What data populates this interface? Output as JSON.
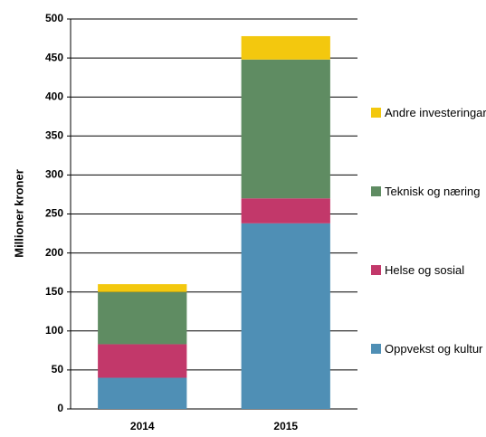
{
  "chart_data": {
    "type": "stacked_bar",
    "y_label": "Millioner kroner",
    "categories": [
      "2014",
      "2015"
    ],
    "series": [
      {
        "name": "Oppvekst og kultur",
        "color": "#4f8fb5",
        "values": [
          40,
          238
        ]
      },
      {
        "name": "Helse og sosial",
        "color": "#c2386a",
        "values": [
          43,
          32
        ]
      },
      {
        "name": "Teknisk og næring",
        "color": "#5f8c62",
        "values": [
          67,
          178
        ]
      },
      {
        "name": "Andre investeringar",
        "color": "#f3c80e",
        "values": [
          10,
          30
        ]
      }
    ],
    "ylim": [
      0,
      500
    ],
    "yticks": [
      0,
      50,
      100,
      150,
      200,
      250,
      300,
      350,
      400,
      450,
      500
    ],
    "grid": true,
    "legend": "right"
  }
}
